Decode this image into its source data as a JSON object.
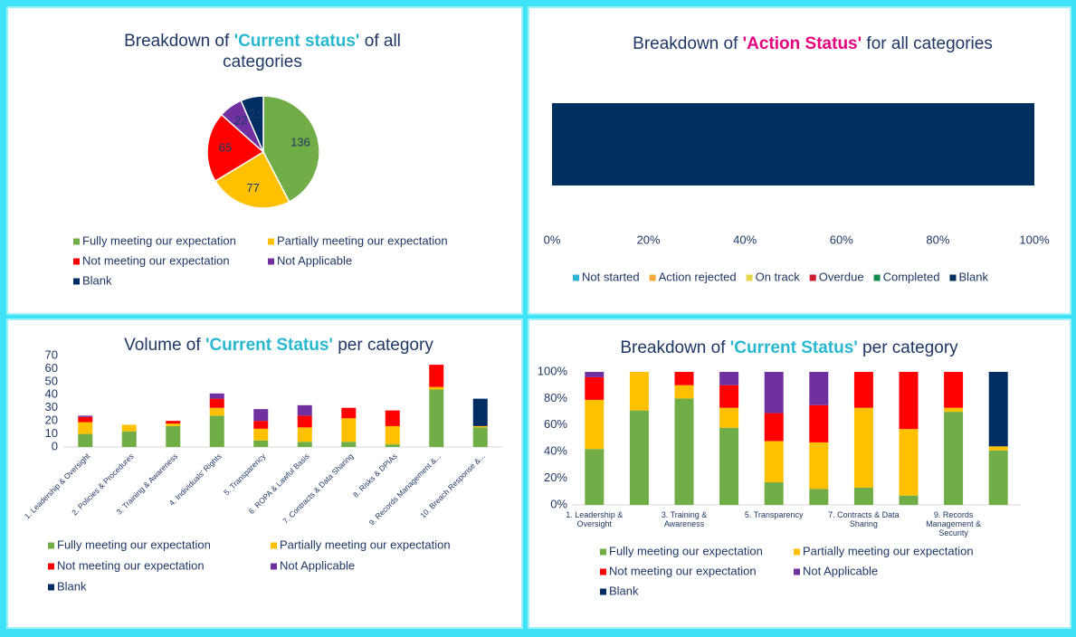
{
  "chart_data": [
    {
      "type": "pie",
      "title_parts": [
        "Breakdown of ",
        "'Current status'",
        " of all categories"
      ],
      "highlight_color": "#29b8d0",
      "categories": [
        "Fully meeting our expectation",
        "Partially meeting our expectation",
        "Not meeting our expectation",
        "Not Applicable",
        "Blank"
      ],
      "values": [
        136,
        77,
        65,
        22,
        21
      ],
      "colors": [
        "#70ad47",
        "#ffc000",
        "#ff0000",
        "#7030a0",
        "#002e62"
      ],
      "legend": "bottom"
    },
    {
      "type": "bar",
      "orientation": "horizontal",
      "stacked": true,
      "title_parts": [
        "Breakdown of ",
        "'Action Status'",
        " for all categories"
      ],
      "highlight_color": "#e6007e",
      "categories": [
        null
      ],
      "series": [
        {
          "name": "Not started",
          "color": "#2eb5d3",
          "values": [
            0
          ]
        },
        {
          "name": "Action rejected",
          "color": "#f5a83c",
          "values": [
            0
          ]
        },
        {
          "name": "On track",
          "color": "#e3d84a",
          "values": [
            0
          ]
        },
        {
          "name": "Overdue",
          "color": "#cf1f2e",
          "values": [
            0
          ]
        },
        {
          "name": "Completed",
          "color": "#0f8a4b",
          "values": [
            0
          ]
        },
        {
          "name": "Blank",
          "color": "#00305f",
          "values": [
            100
          ]
        }
      ],
      "xlim": [
        0,
        100
      ],
      "xticks": [
        {
          "value": 0,
          "label": "0%"
        },
        {
          "value": 20,
          "label": "20%"
        },
        {
          "value": 40,
          "label": "40%"
        },
        {
          "value": 60,
          "label": "60%"
        },
        {
          "value": 80,
          "label": "80%"
        },
        {
          "value": 100,
          "label": "100%"
        }
      ],
      "legend": "bottom"
    },
    {
      "type": "bar",
      "stacked": true,
      "title_parts": [
        "Volume of ",
        "'Current Status'",
        " per category"
      ],
      "highlight_color": "#29b8d0",
      "categories": [
        "1. Leadership & Oversight",
        "2. Policies & Procedures",
        "3. Training & Awareness",
        "4. Individuals' Rights",
        "5. Transparency",
        "6. ROPA & Lawful Basis",
        "7. Contracts & Data Sharing",
        "8. Risks & DPIAs",
        "9. Records Management &...",
        "10. Breach Response &..."
      ],
      "series": [
        {
          "name": "Fully meeting our expectation",
          "color": "#70ad47",
          "values": [
            10,
            12,
            16,
            24,
            5,
            4,
            4,
            2,
            44,
            15
          ]
        },
        {
          "name": "Partially meeting our expectation",
          "color": "#ffc000",
          "values": [
            9,
            5,
            2,
            6,
            9,
            11,
            18,
            14,
            2,
            1
          ]
        },
        {
          "name": "Not meeting our expectation",
          "color": "#ff0000",
          "values": [
            4,
            0,
            2,
            7,
            6,
            9,
            8,
            12,
            17,
            0
          ]
        },
        {
          "name": "Not Applicable",
          "color": "#7030a0",
          "values": [
            1,
            0,
            0,
            4,
            9,
            8,
            0,
            0,
            0,
            0
          ]
        },
        {
          "name": "Blank",
          "color": "#002e62",
          "values": [
            0,
            0,
            0,
            0,
            0,
            0,
            0,
            0,
            0,
            21
          ]
        }
      ],
      "ylim": [
        0,
        70
      ],
      "yticks": [
        0,
        10,
        20,
        30,
        40,
        50,
        60,
        70
      ],
      "legend": "bottom"
    },
    {
      "type": "bar",
      "stacked": true,
      "title_parts": [
        "Breakdown of ",
        "'Current Status'",
        " per category"
      ],
      "highlight_color": "#29b8d0",
      "categories": [
        "1. Leadership & Oversight",
        null,
        "3. Training & Awareness",
        null,
        "5. Transparency",
        null,
        "7. Contracts & Data Sharing",
        null,
        "9. Records Management & Security",
        null
      ],
      "series": [
        {
          "name": "Fully meeting our expectation",
          "color": "#70ad47",
          "values": [
            42,
            71,
            80,
            58,
            17,
            12,
            13,
            7,
            70,
            41
          ]
        },
        {
          "name": "Partially meeting our expectation",
          "color": "#ffc000",
          "values": [
            37,
            29,
            10,
            15,
            31,
            35,
            60,
            50,
            3,
            3
          ]
        },
        {
          "name": "Not meeting our expectation",
          "color": "#ff0000",
          "values": [
            17,
            0,
            10,
            17,
            21,
            28,
            27,
            43,
            27,
            0
          ]
        },
        {
          "name": "Not Applicable",
          "color": "#7030a0",
          "values": [
            4,
            0,
            0,
            10,
            31,
            25,
            0,
            0,
            0,
            0
          ]
        },
        {
          "name": "Blank",
          "color": "#002e62",
          "values": [
            0,
            0,
            0,
            0,
            0,
            0,
            0,
            0,
            0,
            56
          ]
        }
      ],
      "ylim": [
        0,
        100
      ],
      "yticks": [
        {
          "value": 0,
          "label": "0%"
        },
        {
          "value": 20,
          "label": "20%"
        },
        {
          "value": 40,
          "label": "40%"
        },
        {
          "value": 60,
          "label": "60%"
        },
        {
          "value": 80,
          "label": "80%"
        },
        {
          "value": 100,
          "label": "100%"
        }
      ],
      "legend": "bottom"
    }
  ]
}
